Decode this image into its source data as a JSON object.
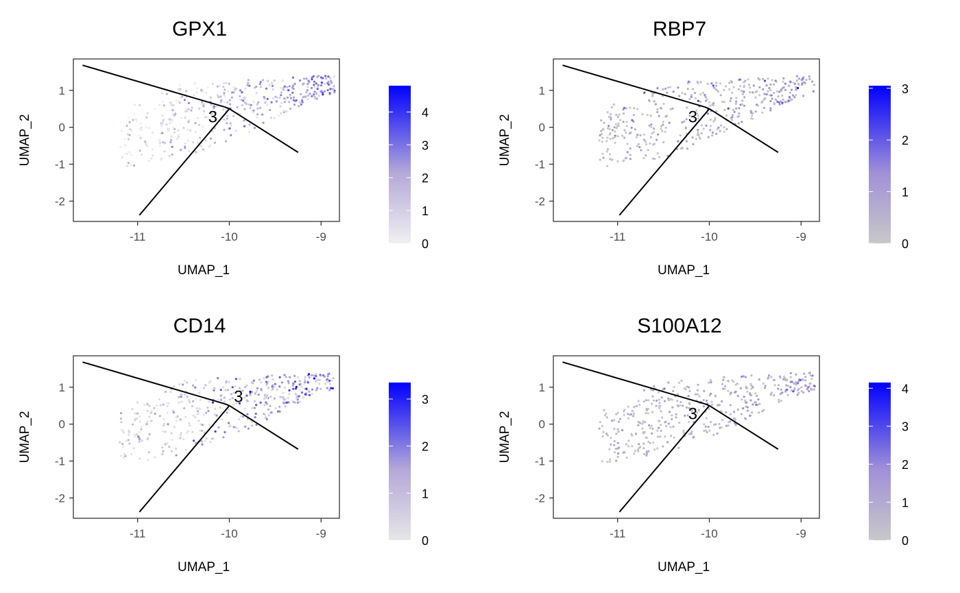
{
  "chart_data": [
    {
      "type": "scatter",
      "title": "GPX1",
      "xlabel": "UMAP_1",
      "ylabel": "UMAP_2",
      "xlim": [
        -11.7,
        -8.8
      ],
      "ylim": [
        -2.55,
        1.85
      ],
      "x_ticks": [
        "-11",
        "-10",
        "-9"
      ],
      "y_ticks": [
        "1",
        "0",
        "-1",
        "-2"
      ],
      "trajectory": [
        [
          -11.6,
          1.68
        ],
        [
          -10.05,
          0.55
        ],
        [
          -10.05,
          0.55
        ],
        [
          -10.0,
          0.5
        ],
        [
          -10.0,
          0.5
        ],
        [
          -9.25,
          -0.68
        ],
        [
          -10.0,
          0.5
        ],
        [
          -10.98,
          -2.38
        ]
      ],
      "branch_label": {
        "text": "3",
        "x": -10.18,
        "y": 0.28
      },
      "colorbar": {
        "min": 0,
        "max": 4.8,
        "ticks": [
          "4",
          "3",
          "2",
          "1",
          "0"
        ],
        "tick_values": [
          4,
          3,
          2,
          1,
          0
        ],
        "low_color": "#f0f0f0",
        "mid_color": "#b4a8d8",
        "high_color": "#0000ff"
      },
      "point_seed": 11,
      "point_mean": 1.7
    },
    {
      "type": "scatter",
      "title": "RBP7",
      "xlabel": "UMAP_1",
      "ylabel": "UMAP_2",
      "xlim": [
        -11.7,
        -8.8
      ],
      "ylim": [
        -2.55,
        1.85
      ],
      "x_ticks": [
        "-11",
        "-10",
        "-9"
      ],
      "y_ticks": [
        "1",
        "0",
        "-1",
        "-2"
      ],
      "trajectory": [
        [
          -11.6,
          1.68
        ],
        [
          -10.05,
          0.55
        ],
        [
          -10.05,
          0.55
        ],
        [
          -10.0,
          0.5
        ],
        [
          -10.0,
          0.5
        ],
        [
          -9.25,
          -0.68
        ],
        [
          -10.0,
          0.5
        ],
        [
          -10.98,
          -2.38
        ]
      ],
      "branch_label": {
        "text": "3",
        "x": -10.18,
        "y": 0.28
      },
      "colorbar": {
        "min": 0,
        "max": 3.05,
        "ticks": [
          "3",
          "2",
          "1",
          "0"
        ],
        "tick_values": [
          3,
          2,
          1,
          0
        ],
        "low_color": "#c8c8c8",
        "mid_color": "#a090d8",
        "high_color": "#0000ff"
      },
      "point_seed": 23,
      "point_mean": 0.6
    },
    {
      "type": "scatter",
      "title": "CD14",
      "xlabel": "UMAP_1",
      "ylabel": "UMAP_2",
      "xlim": [
        -11.7,
        -8.8
      ],
      "ylim": [
        -2.55,
        1.85
      ],
      "x_ticks": [
        "-11",
        "-10",
        "-9"
      ],
      "y_ticks": [
        "1",
        "0",
        "-1",
        "-2"
      ],
      "trajectory": [
        [
          -11.6,
          1.68
        ],
        [
          -10.05,
          0.55
        ],
        [
          -10.05,
          0.55
        ],
        [
          -10.0,
          0.5
        ],
        [
          -10.0,
          0.5
        ],
        [
          -9.25,
          -0.68
        ],
        [
          -10.0,
          0.5
        ],
        [
          -10.98,
          -2.38
        ]
      ],
      "branch_label": {
        "text": "3",
        "x": -9.9,
        "y": 0.75
      },
      "colorbar": {
        "min": 0,
        "max": 3.35,
        "ticks": [
          "3",
          "2",
          "1",
          "0"
        ],
        "tick_values": [
          3,
          2,
          1,
          0
        ],
        "low_color": "#e6e6e6",
        "mid_color": "#b4a8d8",
        "high_color": "#0000ff"
      },
      "point_seed": 37,
      "point_mean": 1.2
    },
    {
      "type": "scatter",
      "title": "S100A12",
      "xlabel": "UMAP_1",
      "ylabel": "UMAP_2",
      "xlim": [
        -11.7,
        -8.8
      ],
      "ylim": [
        -2.55,
        1.85
      ],
      "x_ticks": [
        "-11",
        "-10",
        "-9"
      ],
      "y_ticks": [
        "1",
        "0",
        "-1",
        "-2"
      ],
      "trajectory": [
        [
          -11.6,
          1.68
        ],
        [
          -10.05,
          0.55
        ],
        [
          -10.05,
          0.55
        ],
        [
          -10.0,
          0.5
        ],
        [
          -10.0,
          0.5
        ],
        [
          -9.25,
          -0.68
        ],
        [
          -10.0,
          0.5
        ],
        [
          -10.98,
          -2.38
        ]
      ],
      "branch_label": {
        "text": "3",
        "x": -10.18,
        "y": 0.28
      },
      "colorbar": {
        "min": 0,
        "max": 4.15,
        "ticks": [
          "4",
          "3",
          "2",
          "1",
          "0"
        ],
        "tick_values": [
          4,
          3,
          2,
          1,
          0
        ],
        "low_color": "#c8c8c8",
        "mid_color": "#a090d8",
        "high_color": "#0000ff"
      },
      "point_seed": 53,
      "point_mean": 0.9
    }
  ]
}
